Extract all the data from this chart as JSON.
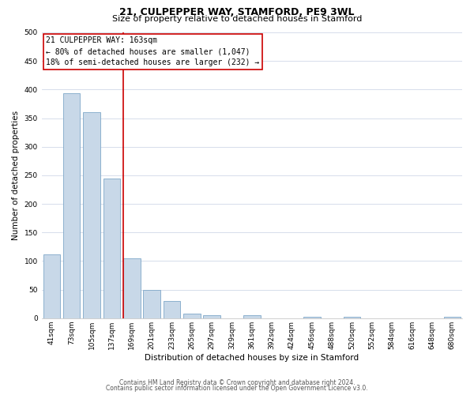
{
  "title": "21, CULPEPPER WAY, STAMFORD, PE9 3WL",
  "subtitle": "Size of property relative to detached houses in Stamford",
  "xlabel": "Distribution of detached houses by size in Stamford",
  "ylabel": "Number of detached properties",
  "bin_labels": [
    "41sqm",
    "73sqm",
    "105sqm",
    "137sqm",
    "169sqm",
    "201sqm",
    "233sqm",
    "265sqm",
    "297sqm",
    "329sqm",
    "361sqm",
    "392sqm",
    "424sqm",
    "456sqm",
    "488sqm",
    "520sqm",
    "552sqm",
    "584sqm",
    "616sqm",
    "648sqm",
    "680sqm"
  ],
  "bar_values": [
    112,
    393,
    360,
    245,
    105,
    50,
    30,
    8,
    5,
    0,
    5,
    0,
    0,
    3,
    0,
    3,
    0,
    0,
    0,
    0,
    3
  ],
  "bar_color": "#c8d8e8",
  "bar_edge_color": "#7fa8c8",
  "annotation_title": "21 CULPEPPER WAY: 163sqm",
  "annotation_line1": "← 80% of detached houses are smaller (1,047)",
  "annotation_line2": "18% of semi-detached houses are larger (232) →",
  "annotation_box_color": "#ffffff",
  "annotation_box_edge_color": "#cc0000",
  "vline_color": "#cc0000",
  "vline_x": 3.575,
  "ylim": [
    0,
    500
  ],
  "yticks": [
    0,
    50,
    100,
    150,
    200,
    250,
    300,
    350,
    400,
    450,
    500
  ],
  "footer1": "Contains HM Land Registry data © Crown copyright and database right 2024.",
  "footer2": "Contains public sector information licensed under the Open Government Licence v3.0.",
  "bg_color": "#ffffff",
  "grid_color": "#d0d8e8",
  "title_fontsize": 9,
  "subtitle_fontsize": 8,
  "ylabel_fontsize": 7.5,
  "xlabel_fontsize": 7.5,
  "tick_fontsize": 6.5,
  "annot_fontsize": 7,
  "footer_fontsize": 5.5
}
